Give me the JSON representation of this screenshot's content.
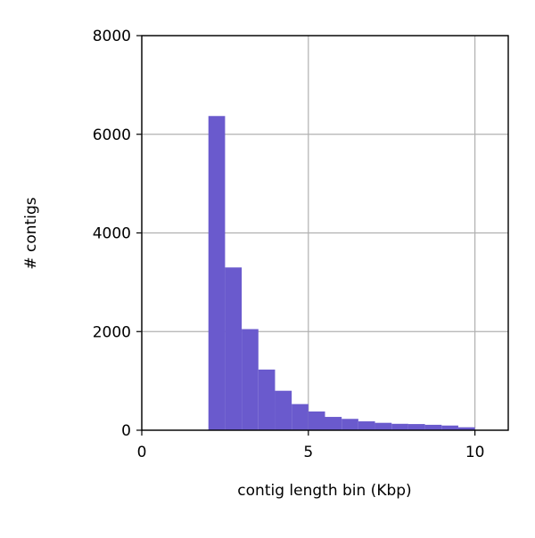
{
  "chart_data": {
    "type": "histogram",
    "xlabel": "contig length bin (Kbp)",
    "ylabel": "# contigs",
    "bins": [
      2,
      2.5,
      3,
      3.5,
      4,
      4.5,
      5,
      5.5,
      6,
      6.5,
      7,
      7.5,
      8,
      8.5,
      9,
      9.5,
      10
    ],
    "values": [
      6370,
      3300,
      2050,
      1230,
      800,
      530,
      380,
      270,
      230,
      180,
      150,
      130,
      125,
      110,
      95,
      60
    ],
    "color": "#6a5acd",
    "xlim": [
      0,
      11
    ],
    "xticks": [
      0,
      5,
      10
    ],
    "ylim": [
      0,
      8000
    ],
    "yticks": [
      0,
      2000,
      4000,
      6000,
      8000
    ],
    "grid": true
  }
}
